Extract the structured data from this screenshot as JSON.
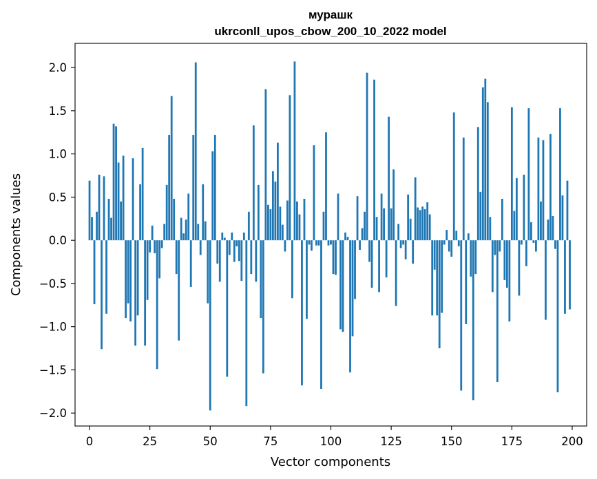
{
  "chart_data": {
    "type": "bar",
    "title": "мурашк",
    "subtitle": "ukrconll_upos_cbow_200_10_2022 model",
    "xlabel": "Vector components",
    "ylabel": "Components values",
    "xlim": [
      -6,
      206
    ],
    "ylim": [
      -2.15,
      2.28
    ],
    "xticks": [
      0,
      25,
      50,
      75,
      100,
      125,
      150,
      175,
      200
    ],
    "yticks": [
      -2.0,
      -1.5,
      -1.0,
      -0.5,
      0.0,
      0.5,
      1.0,
      1.5,
      2.0
    ],
    "ytick_labels": [
      "−2.0",
      "−1.5",
      "−1.0",
      "−0.5",
      "0.0",
      "0.5",
      "1.0",
      "1.5",
      "2.0"
    ],
    "grid": false,
    "bar_color": "#1f77b4",
    "series": [
      {
        "name": "components",
        "values": [
          0.69,
          0.27,
          -0.74,
          0.33,
          0.76,
          -1.26,
          0.74,
          -0.85,
          0.48,
          0.26,
          1.35,
          1.32,
          0.9,
          0.45,
          0.98,
          -0.9,
          -0.73,
          -0.94,
          0.95,
          -1.22,
          -0.87,
          0.65,
          1.07,
          -1.22,
          -0.69,
          -0.14,
          0.17,
          -0.15,
          -1.49,
          -0.44,
          -0.09,
          0.19,
          0.64,
          1.22,
          1.67,
          0.48,
          -0.39,
          -1.16,
          0.26,
          0.08,
          0.24,
          0.54,
          -0.54,
          1.22,
          2.06,
          0.19,
          -0.17,
          0.65,
          0.22,
          -0.73,
          -1.97,
          1.03,
          1.22,
          -0.27,
          -0.48,
          0.09,
          0.03,
          -1.58,
          -0.17,
          0.09,
          -0.25,
          -0.07,
          -0.24,
          -0.47,
          0.09,
          -1.92,
          0.33,
          -0.39,
          1.33,
          -0.48,
          0.64,
          -0.9,
          -1.54,
          1.75,
          0.41,
          0.36,
          0.8,
          0.68,
          1.13,
          0.39,
          0.18,
          -0.13,
          0.46,
          1.68,
          -0.67,
          2.07,
          0.45,
          0.3,
          -1.68,
          0.48,
          -0.91,
          -0.05,
          -0.12,
          1.1,
          -0.06,
          -0.06,
          -1.72,
          0.33,
          1.25,
          -0.06,
          -0.05,
          -0.39,
          -0.4,
          0.54,
          -1.03,
          -1.06,
          0.09,
          0.04,
          -1.53,
          -1.11,
          -0.68,
          0.51,
          -0.11,
          0.14,
          0.33,
          1.94,
          -0.25,
          -0.55,
          1.86,
          0.27,
          -0.6,
          0.54,
          0.37,
          -0.43,
          1.43,
          0.37,
          0.82,
          -0.76,
          0.19,
          -0.09,
          -0.05,
          -0.22,
          0.53,
          0.25,
          -0.27,
          0.73,
          0.38,
          0.35,
          0.39,
          0.36,
          0.44,
          0.3,
          -0.87,
          -0.34,
          -0.87,
          -1.25,
          -0.84,
          -0.05,
          0.12,
          -0.13,
          -0.19,
          1.48,
          0.11,
          -0.07,
          -1.74,
          1.19,
          -0.97,
          0.08,
          -0.42,
          -1.85,
          -0.39,
          1.31,
          0.56,
          1.77,
          1.87,
          1.6,
          0.27,
          -0.6,
          -0.17,
          -1.64,
          -0.13,
          0.48,
          -0.46,
          -0.55,
          -0.94,
          1.54,
          0.34,
          0.72,
          -0.64,
          -0.05,
          0.76,
          -0.3,
          1.53,
          0.21,
          -0.03,
          -0.13,
          1.19,
          0.45,
          1.16,
          -0.92,
          0.24,
          1.23,
          0.28,
          -0.1,
          -1.76,
          1.53,
          0.52,
          -0.85,
          0.69,
          -0.8
        ]
      }
    ]
  }
}
